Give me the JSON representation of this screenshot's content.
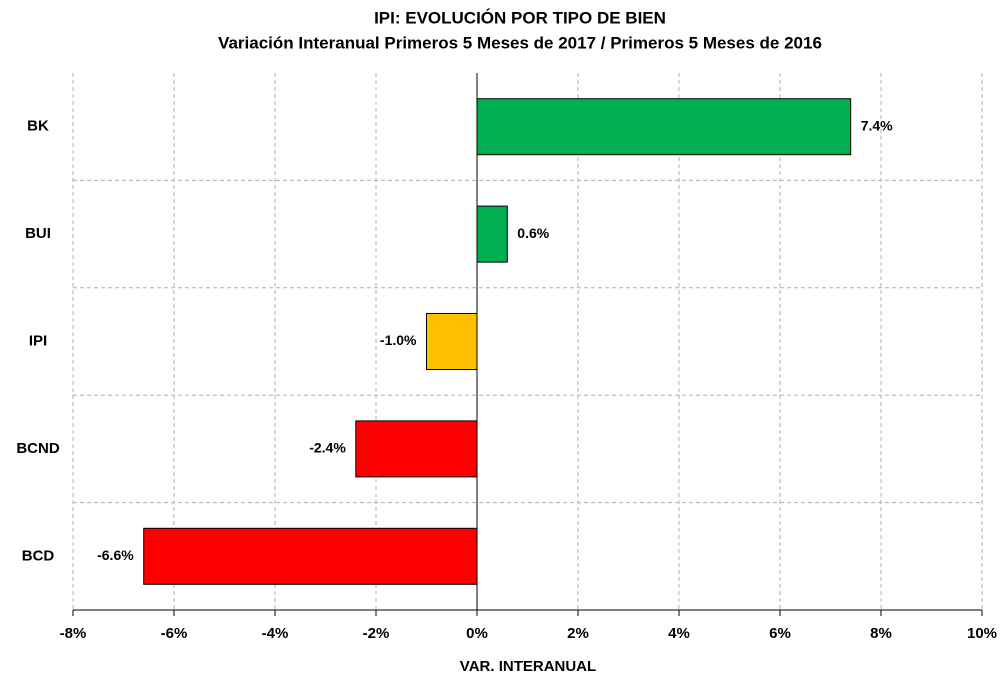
{
  "chart_data": {
    "type": "barh",
    "title": "IPI: EVOLUCIÓN POR TIPO DE BIEN",
    "subtitle": "Variación Interanual Primeros 5 Meses de 2017 /   Primeros 5 Meses de 2016",
    "xlabel": "VAR. INTERANUAL",
    "categories": [
      "BK",
      "BUI",
      "IPI",
      "BCND",
      "BCD"
    ],
    "values": [
      7.4,
      0.6,
      -1.0,
      -2.4,
      -6.6
    ],
    "value_labels": [
      "7.4%",
      "0.6%",
      "-1.0%",
      "-2.4%",
      "-6.6%"
    ],
    "colors": [
      "#00b050",
      "#00b050",
      "#ffc000",
      "#ff0000",
      "#ff0000"
    ],
    "xlim": [
      -8,
      10
    ],
    "xticks": [
      {
        "value": -8,
        "label": "-8%"
      },
      {
        "value": -6,
        "label": "-6%"
      },
      {
        "value": -4,
        "label": "-4%"
      },
      {
        "value": -2,
        "label": "-2%"
      },
      {
        "value": 0,
        "label": "0%"
      },
      {
        "value": 2,
        "label": "2%"
      },
      {
        "value": 4,
        "label": "4%"
      },
      {
        "value": 6,
        "label": "6%"
      },
      {
        "value": 8,
        "label": "8%"
      },
      {
        "value": 10,
        "label": "10%"
      }
    ],
    "grid": true
  }
}
